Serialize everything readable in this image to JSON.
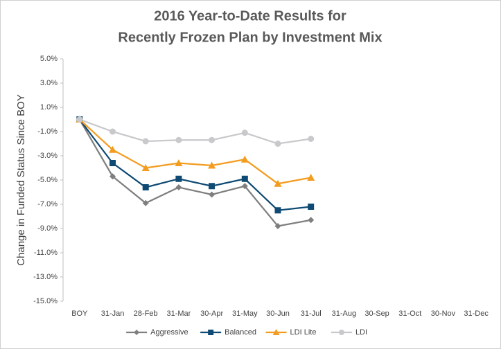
{
  "chart_data": {
    "type": "line",
    "title": [
      "2016 Year-to-Date Results for",
      "Recently Frozen Plan by Investment Mix"
    ],
    "y_label": "Change in Funded Status Since BOY",
    "categories": [
      "BOY",
      "31-Jan",
      "28-Feb",
      "31-Mar",
      "30-Apr",
      "31-May",
      "30-Jun",
      "31-Jul",
      "31-Aug",
      "30-Sep",
      "31-Oct",
      "30-Nov",
      "31-Dec"
    ],
    "series": [
      {
        "name": "Aggressive",
        "color": "#7f7f7f",
        "marker": "diamond",
        "values": [
          0,
          -4.7,
          -6.9,
          -5.6,
          -6.2,
          -5.5,
          -8.8,
          -8.3,
          null,
          null,
          null,
          null,
          null
        ]
      },
      {
        "name": "Balanced",
        "color": "#0e4a73",
        "marker": "square",
        "values": [
          0,
          -3.6,
          -5.6,
          -4.9,
          -5.5,
          -4.9,
          -7.5,
          -7.2,
          null,
          null,
          null,
          null,
          null
        ]
      },
      {
        "name": "LDI Lite",
        "color": "#f39c1f",
        "marker": "triangle",
        "values": [
          0,
          -2.5,
          -4.0,
          -3.6,
          -3.8,
          -3.3,
          -5.3,
          -4.8,
          null,
          null,
          null,
          null,
          null
        ]
      },
      {
        "name": "LDI",
        "color": "#c9c9cc",
        "marker": "circle",
        "values": [
          0,
          -1.0,
          -1.8,
          -1.7,
          -1.7,
          -1.1,
          -2.0,
          -1.6,
          null,
          null,
          null,
          null,
          null
        ]
      }
    ],
    "ylim": [
      -15,
      5
    ],
    "yticks": [
      {
        "value": 5,
        "label": "5.0%"
      },
      {
        "value": 3,
        "label": "3.0%"
      },
      {
        "value": 1,
        "label": "1.0%"
      },
      {
        "value": -1,
        "label": "-1.0%"
      },
      {
        "value": -3,
        "label": "-3.0%"
      },
      {
        "value": -5,
        "label": "-5.0%"
      },
      {
        "value": -7,
        "label": "-7.0%"
      },
      {
        "value": -9,
        "label": "-9.0%"
      },
      {
        "value": -11,
        "label": "-11.0%"
      },
      {
        "value": -13,
        "label": "-13.0%"
      },
      {
        "value": -15,
        "label": "-15.0%"
      }
    ],
    "grid": false,
    "legend": "bottom"
  }
}
